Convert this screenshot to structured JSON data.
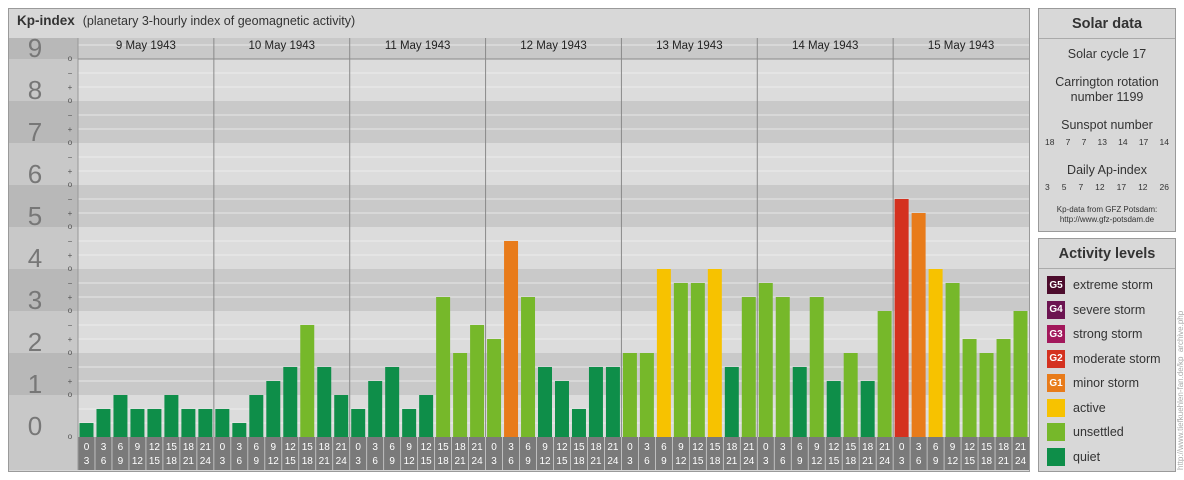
{
  "header": {
    "title": "Kp-index",
    "subtitle": "(planetary 3-hourly index of geomagnetic activity)"
  },
  "chart_data": {
    "type": "bar",
    "y_major_ticks": [
      "0",
      "1",
      "2",
      "3",
      "4",
      "5",
      "6",
      "7",
      "8",
      "9"
    ],
    "y_minor_labels": [
      "o",
      "+",
      "−"
    ],
    "ylim": [
      0,
      9
    ],
    "days": [
      "9 May 1943",
      "10 May 1943",
      "11 May 1943",
      "12 May 1943",
      "13 May 1943",
      "14 May 1943",
      "15 May 1943"
    ],
    "interval_start": [
      "0",
      "3",
      "6",
      "9",
      "12",
      "15",
      "18",
      "21"
    ],
    "interval_end": [
      "3",
      "6",
      "9",
      "12",
      "15",
      "18",
      "21",
      "24"
    ],
    "values": [
      [
        0.333,
        0.667,
        1.0,
        0.667,
        0.667,
        1.0,
        0.667,
        0.667
      ],
      [
        0.667,
        0.333,
        1.0,
        1.333,
        1.667,
        2.667,
        1.667,
        1.0
      ],
      [
        0.667,
        1.333,
        1.667,
        0.667,
        1.0,
        3.333,
        2.0,
        2.667
      ],
      [
        2.333,
        4.667,
        3.333,
        1.667,
        1.333,
        0.667,
        1.667,
        1.667
      ],
      [
        2.0,
        2.0,
        4.0,
        3.667,
        3.667,
        4.0,
        1.667,
        3.333
      ],
      [
        3.667,
        3.333,
        1.667,
        3.333,
        1.333,
        2.0,
        1.333,
        3.0
      ],
      [
        5.667,
        5.333,
        4.0,
        3.667,
        2.333,
        2.0,
        2.333,
        3.0
      ]
    ],
    "colors": {
      "quiet": "#0e8e49",
      "unsettled": "#76b82a",
      "active": "#f7c200",
      "minor": "#e87b1a",
      "moderate": "#d4311f",
      "strong": "#a2185b",
      "severe": "#6c1451",
      "extreme": "#4c0c2c"
    }
  },
  "solar": {
    "title": "Solar data",
    "cycle": "Solar cycle 17",
    "carrington_line1": "Carrington rotation",
    "carrington_line2": "number 1199",
    "sunspot_title": "Sunspot number",
    "sunspot_values": [
      "18",
      "7",
      "7",
      "13",
      "14",
      "17",
      "14"
    ],
    "ap_title": "Daily Ap-index",
    "ap_values": [
      "3",
      "5",
      "7",
      "12",
      "17",
      "12",
      "26"
    ],
    "credit_line1": "Kp-data from GFZ Potsdam:",
    "credit_line2": "http://www.gfz-potsdam.de"
  },
  "activity": {
    "title": "Activity levels",
    "items": [
      {
        "badge": "G5",
        "label": "extreme storm",
        "color": "#4c0c2c"
      },
      {
        "badge": "G4",
        "label": "severe storm",
        "color": "#6c1451"
      },
      {
        "badge": "G3",
        "label": "strong storm",
        "color": "#a2185b"
      },
      {
        "badge": "G2",
        "label": "moderate storm",
        "color": "#d4311f"
      },
      {
        "badge": "G1",
        "label": "minor storm",
        "color": "#e87b1a"
      },
      {
        "badge": "",
        "label": "active",
        "color": "#f7c200"
      },
      {
        "badge": "",
        "label": "unsettled",
        "color": "#76b82a"
      },
      {
        "badge": "",
        "label": "quiet",
        "color": "#0e8e49"
      }
    ]
  },
  "watermark": "http://www.tiefkuehlen-fan.de/kp_archive.php"
}
